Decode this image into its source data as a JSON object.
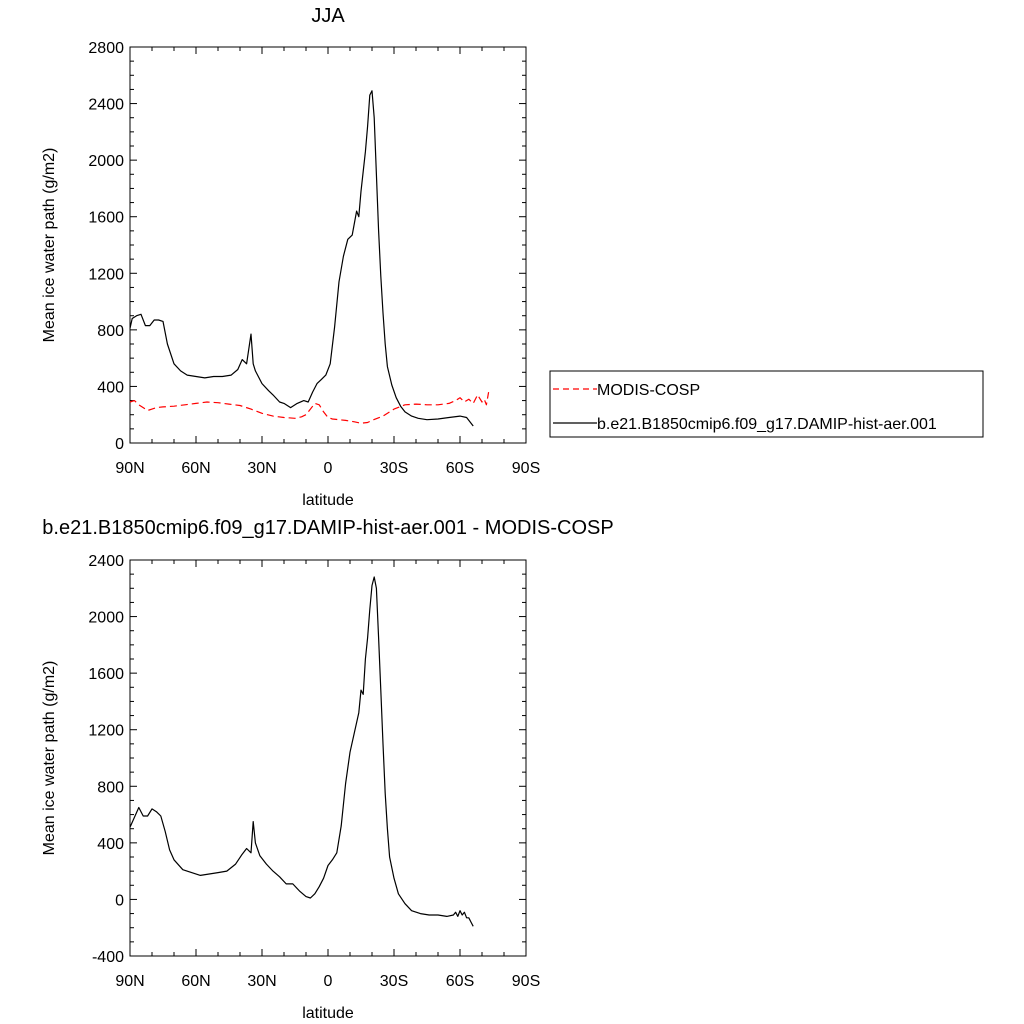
{
  "chart_data": [
    {
      "type": "line",
      "title": "JJA",
      "xlabel": "latitude",
      "ylabel": "Mean ice water path (g/m2)",
      "x_direction": "north-to-south",
      "xlim": [
        90,
        -90
      ],
      "ylim": [
        0,
        2800
      ],
      "xticks": [
        {
          "value": 90,
          "label": "90N"
        },
        {
          "value": 60,
          "label": "60N"
        },
        {
          "value": 30,
          "label": "30N"
        },
        {
          "value": 0,
          "label": "0"
        },
        {
          "value": -30,
          "label": "30S"
        },
        {
          "value": -60,
          "label": "60S"
        },
        {
          "value": -90,
          "label": "90S"
        }
      ],
      "yticks": [
        0,
        400,
        800,
        1200,
        1600,
        2000,
        2400,
        2800
      ],
      "legend_position": "right",
      "grid": false,
      "series": [
        {
          "name": "MODIS-COSP",
          "color": "#ff0000",
          "dash": "dashed",
          "x": [
            90,
            88,
            86,
            84,
            82,
            80,
            78,
            75,
            70,
            65,
            60,
            55,
            50,
            45,
            40,
            35,
            30,
            25,
            20,
            15,
            12,
            10,
            8,
            6,
            4,
            2,
            0,
            -2,
            -5,
            -8,
            -12,
            -15,
            -18,
            -20,
            -25,
            -30,
            -35,
            -40,
            -45,
            -50,
            -55,
            -58,
            -60,
            -62,
            -64,
            -66,
            -68,
            -70,
            -71,
            -72,
            -73
          ],
          "y": [
            290,
            300,
            270,
            250,
            230,
            240,
            250,
            255,
            260,
            270,
            280,
            290,
            285,
            275,
            265,
            240,
            210,
            190,
            180,
            175,
            185,
            200,
            240,
            280,
            270,
            220,
            180,
            170,
            165,
            160,
            150,
            140,
            145,
            160,
            190,
            240,
            270,
            275,
            270,
            270,
            280,
            300,
            320,
            290,
            310,
            280,
            340,
            290,
            310,
            270,
            360
          ]
        },
        {
          "name": "b.e21.B1850cmip6.f09_g17.DAMIP-hist-aer.001",
          "color": "#000000",
          "dash": "solid",
          "x": [
            90,
            89,
            87,
            85,
            83,
            81,
            79,
            77,
            75,
            73,
            70,
            67,
            64,
            60,
            56,
            52,
            48,
            44,
            41,
            39,
            37,
            35,
            34,
            33,
            30,
            27,
            25,
            22,
            20,
            17,
            14,
            11,
            9,
            7,
            5,
            3,
            1,
            -1,
            -3,
            -5,
            -7,
            -9,
            -11,
            -13,
            -14,
            -15,
            -16,
            -17,
            -18,
            -19,
            -20,
            -21,
            -22,
            -23,
            -24,
            -25,
            -26,
            -27,
            -29,
            -31,
            -33,
            -35,
            -38,
            -41,
            -45,
            -50,
            -55,
            -60,
            -63,
            -66
          ],
          "y": [
            810,
            880,
            900,
            910,
            830,
            830,
            870,
            870,
            860,
            700,
            560,
            510,
            480,
            470,
            460,
            470,
            470,
            480,
            520,
            590,
            560,
            770,
            560,
            510,
            420,
            370,
            340,
            290,
            280,
            250,
            280,
            300,
            290,
            360,
            420,
            450,
            480,
            560,
            820,
            1140,
            1320,
            1440,
            1470,
            1640,
            1600,
            1780,
            1920,
            2060,
            2240,
            2460,
            2490,
            2300,
            1900,
            1500,
            1180,
            920,
            700,
            540,
            410,
            320,
            260,
            220,
            190,
            175,
            165,
            170,
            180,
            190,
            180,
            120
          ]
        }
      ]
    },
    {
      "type": "line",
      "title": "b.e21.B1850cmip6.f09_g17.DAMIP-hist-aer.001 - MODIS-COSP",
      "xlabel": "latitude",
      "ylabel": "Mean ice water path (g/m2)",
      "x_direction": "north-to-south",
      "xlim": [
        90,
        -90
      ],
      "ylim": [
        -400,
        2400
      ],
      "xticks": [
        {
          "value": 90,
          "label": "90N"
        },
        {
          "value": 60,
          "label": "60N"
        },
        {
          "value": 30,
          "label": "30N"
        },
        {
          "value": 0,
          "label": "0"
        },
        {
          "value": -30,
          "label": "30S"
        },
        {
          "value": -60,
          "label": "60S"
        },
        {
          "value": -90,
          "label": "90S"
        }
      ],
      "yticks": [
        -400,
        0,
        400,
        800,
        1200,
        1600,
        2000,
        2400
      ],
      "grid": false,
      "series": [
        {
          "color": "#000000",
          "dash": "solid",
          "x": [
            90,
            88,
            86,
            84,
            82,
            80,
            78,
            76,
            74,
            72,
            70,
            66,
            62,
            58,
            54,
            50,
            46,
            42,
            39,
            37,
            35,
            34,
            33,
            31,
            28,
            25,
            22,
            19,
            16,
            13,
            10,
            8,
            6,
            4,
            2,
            0,
            -2,
            -4,
            -6,
            -8,
            -10,
            -12,
            -14,
            -15,
            -16,
            -17,
            -18,
            -19,
            -20,
            -21,
            -22,
            -23,
            -24,
            -25,
            -26,
            -27,
            -28,
            -30,
            -32,
            -35,
            -38,
            -42,
            -46,
            -50,
            -54,
            -57,
            -58,
            -59,
            -60,
            -61,
            -62,
            -63,
            -64,
            -65,
            -66
          ],
          "y": [
            510,
            580,
            650,
            590,
            590,
            640,
            620,
            590,
            480,
            350,
            280,
            210,
            190,
            170,
            180,
            190,
            200,
            250,
            320,
            360,
            330,
            550,
            400,
            310,
            250,
            200,
            160,
            110,
            110,
            60,
            20,
            10,
            40,
            90,
            150,
            240,
            280,
            330,
            520,
            820,
            1040,
            1180,
            1320,
            1480,
            1450,
            1700,
            1850,
            2050,
            2220,
            2280,
            2200,
            1850,
            1480,
            1100,
            750,
            500,
            300,
            150,
            40,
            -30,
            -80,
            -100,
            -110,
            -110,
            -120,
            -110,
            -90,
            -120,
            -80,
            -110,
            -90,
            -130,
            -130,
            -160,
            -190
          ]
        }
      ]
    }
  ]
}
